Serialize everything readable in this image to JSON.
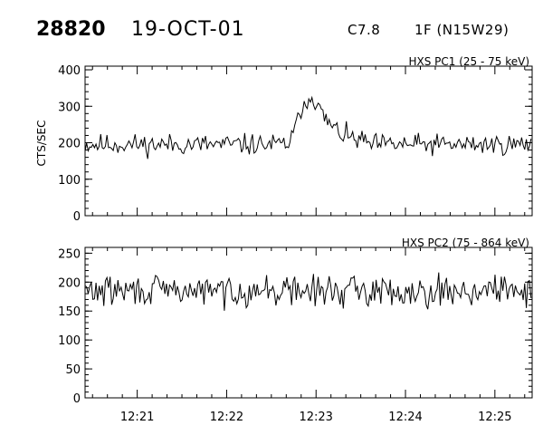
{
  "header": {
    "event_number": "28820",
    "date": "19-OCT-01",
    "goes_class": "C7.8",
    "optical_class": "1F (N15W29)"
  },
  "colors": {
    "background": "#ffffff",
    "ink": "#000000"
  },
  "chart_data": [
    {
      "type": "line",
      "title": "HXS PC1 (25 - 75 keV)",
      "ylabel": "CTS/SEC",
      "xlim": [
        "12:20:25",
        "12:25:25"
      ],
      "ylim": [
        0,
        410
      ],
      "yticks": [
        0,
        100,
        200,
        300,
        400
      ],
      "ytick_labels": [
        "0",
        "100",
        "200",
        "300",
        "400"
      ],
      "xticks": [
        "12:21",
        "12:22",
        "12:23",
        "12:24",
        "12:25"
      ],
      "xtick_labels": [],
      "grid": false,
      "legend": "none",
      "series": [
        {
          "background_level": 195,
          "noise_amplitude": 22,
          "seed": 11,
          "peak": {
            "rise_start": "12:22:40",
            "peak_time": "12:22:57",
            "peak_value": 340,
            "decay_end": "12:23:35",
            "secondary_bump": {
              "time": "12:22:50",
              "value": 310
            }
          }
        }
      ]
    },
    {
      "type": "line",
      "title": "HXS PC2 (75 - 864 keV)",
      "ylabel": "",
      "xlim": [
        "12:20:25",
        "12:25:25"
      ],
      "ylim": [
        0,
        260
      ],
      "yticks": [
        0,
        50,
        100,
        150,
        200,
        250
      ],
      "ytick_labels": [
        "0",
        "50",
        "100",
        "150",
        "200",
        "250"
      ],
      "xticks": [
        "12:21",
        "12:22",
        "12:23",
        "12:24",
        "12:25"
      ],
      "xtick_labels": [
        "12:21",
        "12:22",
        "12:23",
        "12:24",
        "12:25"
      ],
      "grid": false,
      "legend": "none",
      "series": [
        {
          "background_level": 185,
          "noise_amplitude": 20,
          "seed": 29,
          "peak": null
        }
      ]
    }
  ]
}
